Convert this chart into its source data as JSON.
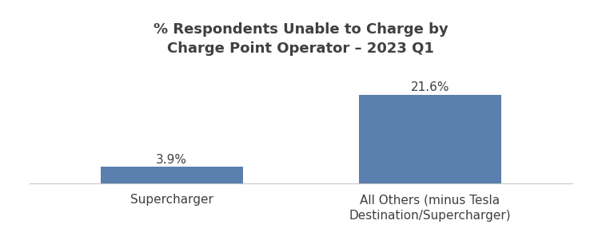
{
  "title": "% Respondents Unable to Charge by\nCharge Point Operator – 2023 Q1",
  "categories": [
    "Supercharger",
    "All Others (minus Tesla\nDestination/Supercharger)"
  ],
  "values": [
    3.9,
    21.6
  ],
  "bar_color": "#5b7fae",
  "bar_labels": [
    "3.9%",
    "21.6%"
  ],
  "ylim": [
    0,
    28
  ],
  "title_fontsize": 13,
  "title_fontweight": "bold",
  "title_color": "#404040",
  "label_fontsize": 11,
  "tick_fontsize": 11,
  "bar_width": 0.55,
  "background_color": "#ffffff",
  "spine_color": "#c8c8c8"
}
